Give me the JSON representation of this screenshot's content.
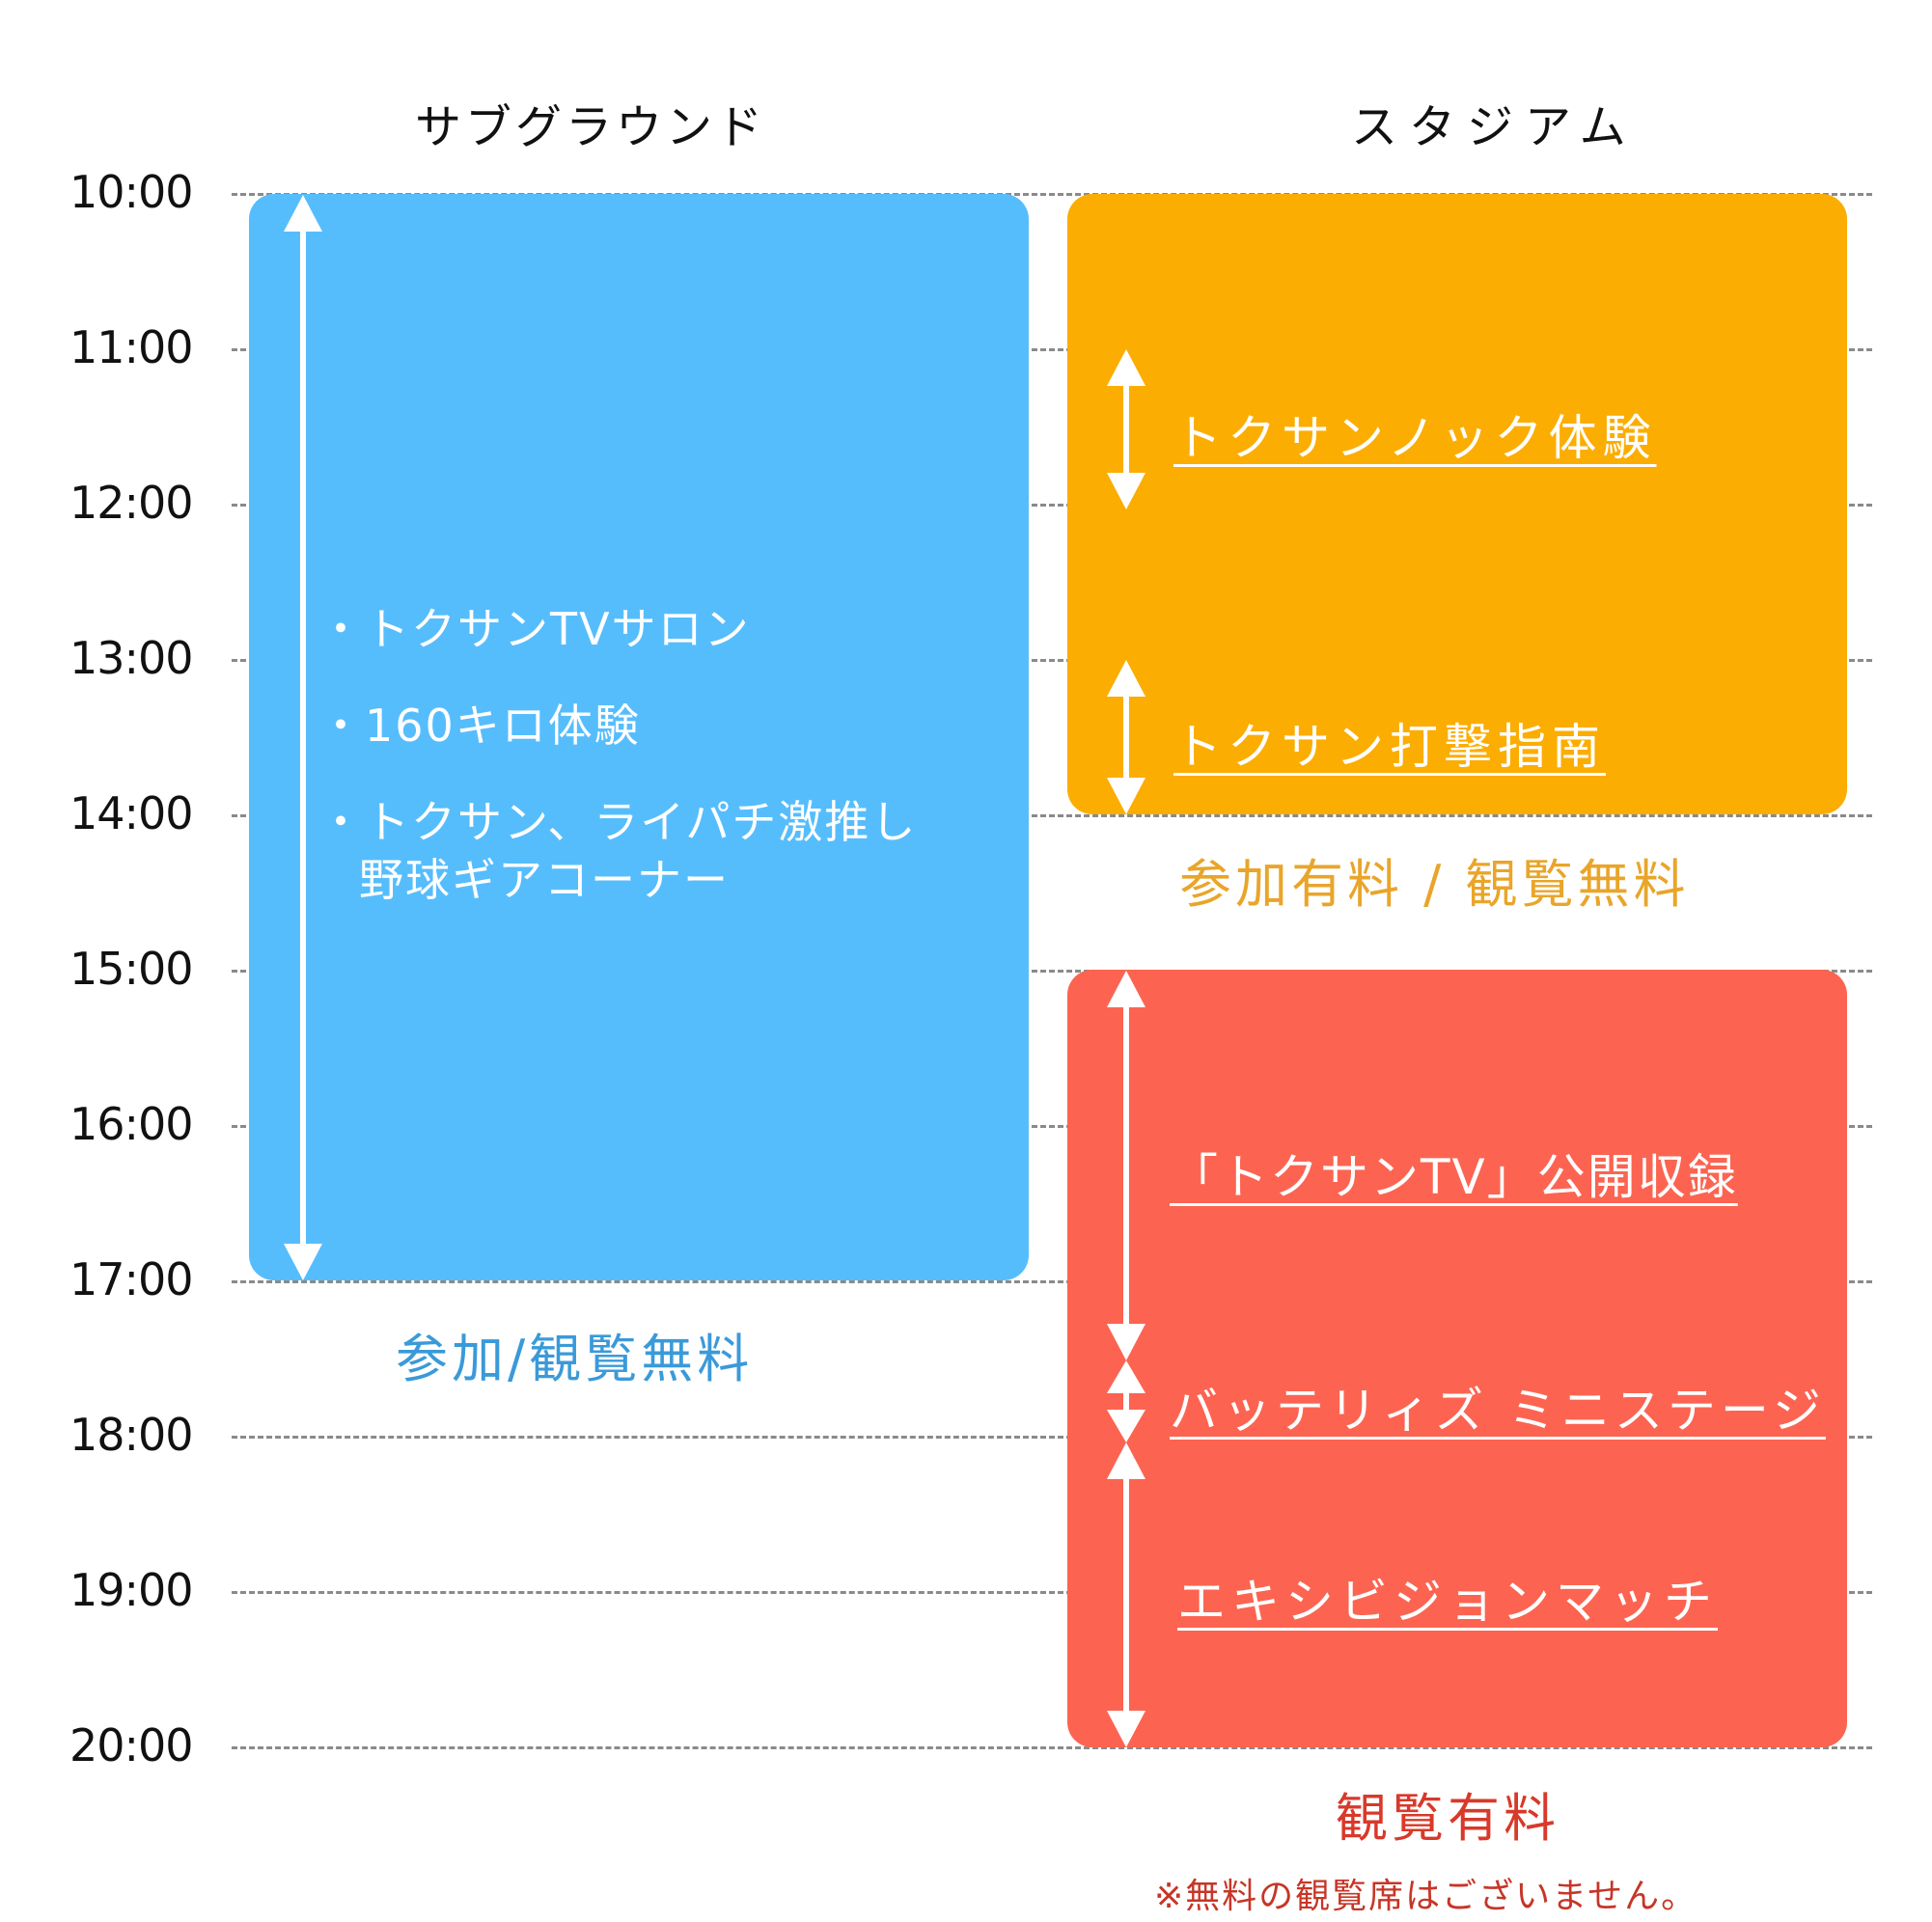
{
  "headers": {
    "sub_ground": "サブグラウンド",
    "stadium": "スタジアム"
  },
  "times": [
    "10:00",
    "11:00",
    "12:00",
    "13:00",
    "14:00",
    "15:00",
    "16:00",
    "17:00",
    "18:00",
    "19:00",
    "20:00"
  ],
  "sub_ground": {
    "items": [
      "・トクサンTVサロン",
      "・160キロ体験",
      "・トクサン、ライパチ激推し",
      "野球ギアコーナー"
    ],
    "fee": "参加/観覧無料"
  },
  "stadium_am": {
    "events": [
      "トクサンノック体験",
      "トクサン打撃指南"
    ],
    "fee": "参加有料 / 観覧無料"
  },
  "stadium_pm": {
    "events": [
      "「トクサンTV」公開収録",
      "バッテリィズ ミニステージ",
      "エキシビジョンマッチ"
    ],
    "fee": "観覧有料",
    "note": "※無料の観覧席はございません。"
  },
  "colors": {
    "blue": "#56bdfd",
    "orange": "#fcad02",
    "red": "#fc6451",
    "blue_text": "#3a9ad9",
    "orange_text": "#e9a52a",
    "red_text": "#d8392a"
  }
}
